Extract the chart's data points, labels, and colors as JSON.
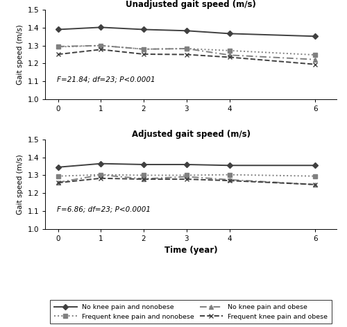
{
  "time": [
    0,
    1,
    2,
    3,
    4,
    6
  ],
  "unadj": {
    "no_pain_nonobese": [
      1.39,
      1.402,
      1.39,
      1.383,
      1.367,
      1.352
    ],
    "no_pain_obese": [
      1.295,
      1.3,
      1.28,
      1.283,
      1.247,
      1.222
    ],
    "freq_pain_nonobese": [
      1.293,
      1.3,
      1.28,
      1.283,
      1.272,
      1.248
    ],
    "freq_pain_obese": [
      1.251,
      1.278,
      1.252,
      1.25,
      1.235,
      1.195
    ],
    "annotation": "F=21.84; df=23; P<0.0001"
  },
  "adj": {
    "no_pain_nonobese": [
      1.345,
      1.365,
      1.36,
      1.36,
      1.355,
      1.355
    ],
    "no_pain_obese": [
      1.26,
      1.302,
      1.28,
      1.292,
      1.275,
      1.248
    ],
    "freq_pain_nonobese": [
      1.295,
      1.303,
      1.3,
      1.3,
      1.303,
      1.295
    ],
    "freq_pain_obese": [
      1.258,
      1.283,
      1.278,
      1.278,
      1.27,
      1.248
    ],
    "annotation": "F=6.86; df=23; P<0.0001"
  },
  "ylim": [
    1.0,
    1.5
  ],
  "yticks": [
    1.0,
    1.1,
    1.2,
    1.3,
    1.4,
    1.5
  ],
  "xticks": [
    0,
    1,
    2,
    3,
    4,
    6
  ],
  "xlabel": "Time (year)",
  "ylabel": "Gait speed (m/s)",
  "title_unadj": "Unadjusted gait speed (m/s)",
  "title_adj": "Adjusted gait speed (m/s)",
  "legend": {
    "no_pain_nonobese": "No knee pain and nonobese",
    "no_pain_obese": "No knee pain and obese",
    "freq_pain_nonobese": "Frequent knee pain and nonobese",
    "freq_pain_obese": "Frequent knee pain and obese"
  },
  "color_dark": "#404040",
  "color_gray": "#808080"
}
